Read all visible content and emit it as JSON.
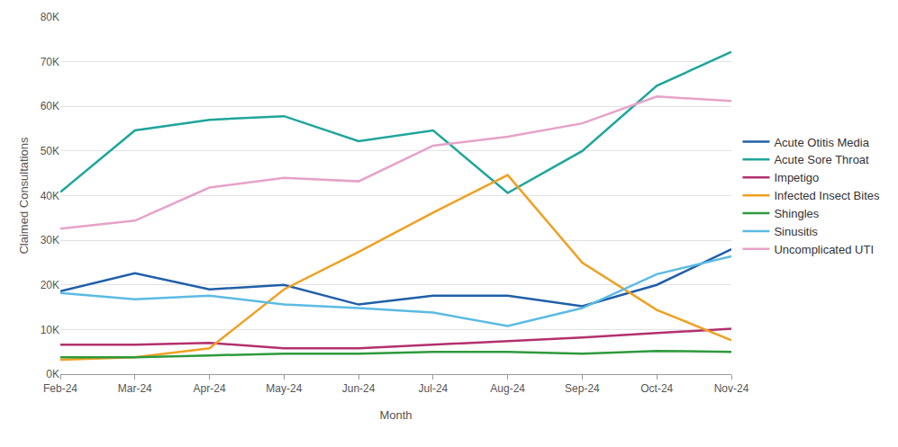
{
  "chart_data": {
    "type": "line",
    "x_label": "Month",
    "y_label": "Claimed Consultations",
    "categories": [
      "Feb-24",
      "Mar-24",
      "Apr-24",
      "May-24",
      "Jun-24",
      "Jul-24",
      "Aug-24",
      "Sep-24",
      "Oct-24",
      "Nov-24"
    ],
    "series": [
      {
        "name": "Acute Otitis Media",
        "color": "#1f5fa8",
        "values": [
          18600,
          22600,
          19000,
          20000,
          15600,
          17600,
          17600,
          15200,
          20000,
          28000
        ]
      },
      {
        "name": "Acute Sore Throat",
        "color": "#1fa59b",
        "values": [
          40800,
          54600,
          57000,
          57800,
          52200,
          54600,
          40600,
          50000,
          64600,
          72200
        ]
      },
      {
        "name": "Impetigo",
        "color": "#b3306d",
        "values": [
          6600,
          6600,
          7000,
          5800,
          5800,
          6600,
          7400,
          8200,
          9200,
          10200
        ]
      },
      {
        "name": "Infected Insect Bites",
        "color": "#f0a023",
        "values": [
          3200,
          3800,
          5800,
          19000,
          27400,
          36200,
          44600,
          25000,
          14400,
          7600
        ]
      },
      {
        "name": "Shingles",
        "color": "#2e9a3c",
        "values": [
          3800,
          3800,
          4200,
          4600,
          4600,
          5000,
          5000,
          4600,
          5200,
          5000
        ]
      },
      {
        "name": "Sinusitis",
        "color": "#5bbbe3",
        "values": [
          18200,
          16800,
          17600,
          15600,
          14800,
          13800,
          10800,
          14800,
          22400,
          26400
        ]
      },
      {
        "name": "Uncomplicated UTI",
        "color": "#e6a2c9",
        "values": [
          32600,
          34400,
          41800,
          44000,
          43200,
          51200,
          53200,
          56200,
          62200,
          61200
        ]
      }
    ],
    "ylim": [
      0,
      80000
    ],
    "yticks": [
      {
        "value": 0,
        "label": "0K"
      },
      {
        "value": 10000,
        "label": "10K"
      },
      {
        "value": 20000,
        "label": "20K"
      },
      {
        "value": 30000,
        "label": "30K"
      },
      {
        "value": 40000,
        "label": "40K"
      },
      {
        "value": 50000,
        "label": "50K"
      },
      {
        "value": 60000,
        "label": "60K"
      },
      {
        "value": 70000,
        "label": "70K"
      },
      {
        "value": 80000,
        "label": "80K"
      }
    ],
    "grid": true,
    "legend": "right"
  }
}
